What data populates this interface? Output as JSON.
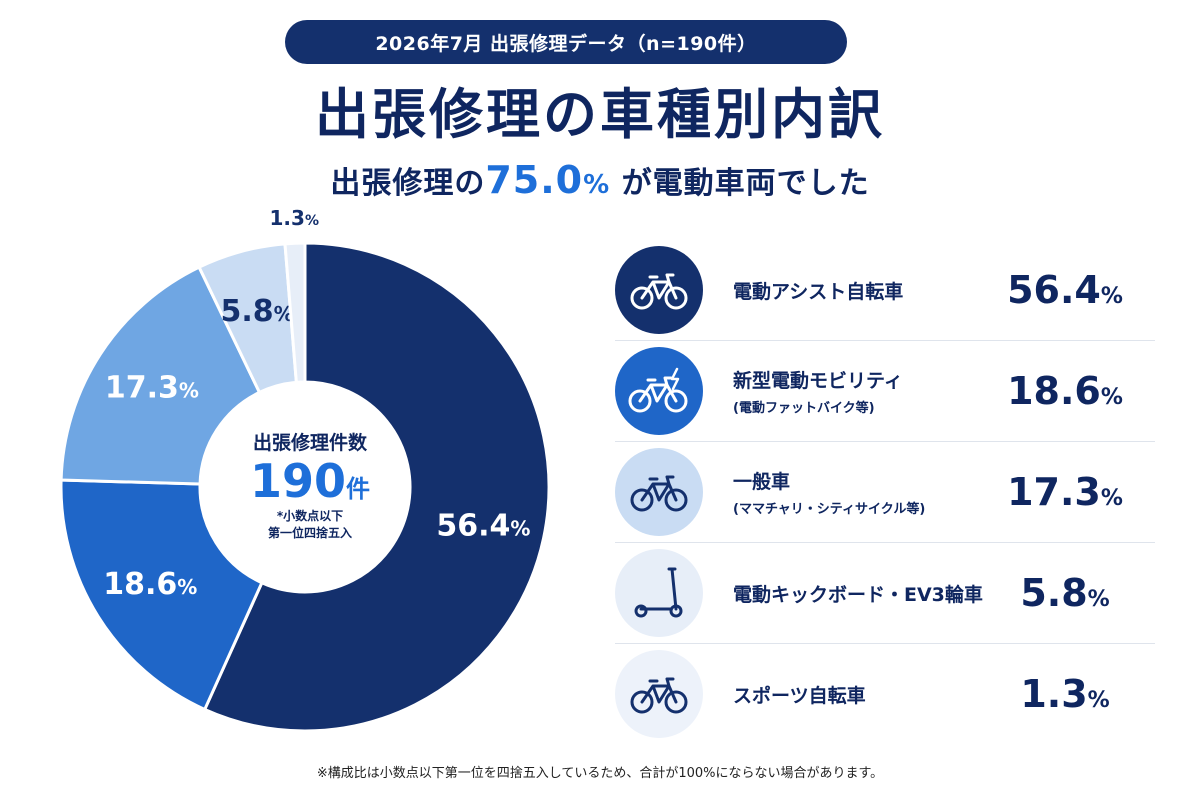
{
  "banner": "2026年7月 出張修理データ（n=190件）",
  "title": "出張修理の車種別内訳",
  "subtitle": {
    "pre": "出張修理の",
    "highlight": "75.0",
    "unit": "%",
    "post": " が電動車両でした"
  },
  "center": {
    "caption": "出張修理件数",
    "count": "190",
    "unit": "件",
    "note1": "*小数点以下",
    "note2": "第一位四捨五入"
  },
  "footnote": "※構成比は小数点以下第一位を四捨五入しているため、合計が100%にならない場合があります。",
  "colors": {
    "navy": "#14306d",
    "blue": "#1f66c8",
    "mid": "#6fa6e3",
    "light": "#c9dcf3",
    "pale": "#e7eef8"
  },
  "legend": [
    {
      "name": "電動アシスト自転車",
      "sub": "",
      "value": "56.4",
      "icon": "bicycle-icon",
      "icon_bg": "#14306d",
      "icon_fg": "#ffffff"
    },
    {
      "name": "新型電動モビリティ",
      "sub": "(電動ファットバイク等)",
      "value": "18.6",
      "icon": "electric-bicycle-icon",
      "icon_bg": "#1f66c8",
      "icon_fg": "#ffffff"
    },
    {
      "name": "一般車",
      "sub": "(ママチャリ・シティサイクル等)",
      "value": "17.3",
      "icon": "bicycle-icon",
      "icon_bg": "#c9dcf3",
      "icon_fg": "#14306d"
    },
    {
      "name": "電動キックボード・EV3輪車",
      "sub": "",
      "value": "5.8",
      "icon": "kick-scooter-icon",
      "icon_bg": "#e7eef8",
      "icon_fg": "#14306d"
    },
    {
      "name": "スポーツ自転車",
      "sub": "",
      "value": "1.3",
      "icon": "bicycle-icon",
      "icon_bg": "#edf2fa",
      "icon_fg": "#14306d"
    }
  ],
  "chart_data": {
    "type": "pie",
    "variant": "donut",
    "categories": [
      "電動アシスト自転車",
      "新型電動モビリティ",
      "一般車",
      "電動キックボード・EV3輪車",
      "スポーツ自転車"
    ],
    "values": [
      56.4,
      18.6,
      17.3,
      5.8,
      1.3
    ],
    "labels": [
      "56.4",
      "18.6",
      "17.3",
      "5.8",
      "1.3"
    ],
    "unit": "%",
    "colors": [
      "#14306d",
      "#1f66c8",
      "#6fa6e3",
      "#c9dcf3",
      "#e7eef8"
    ],
    "label_colors": [
      "#ffffff",
      "#ffffff",
      "#ffffff",
      "#14306d",
      "#14306d"
    ]
  }
}
